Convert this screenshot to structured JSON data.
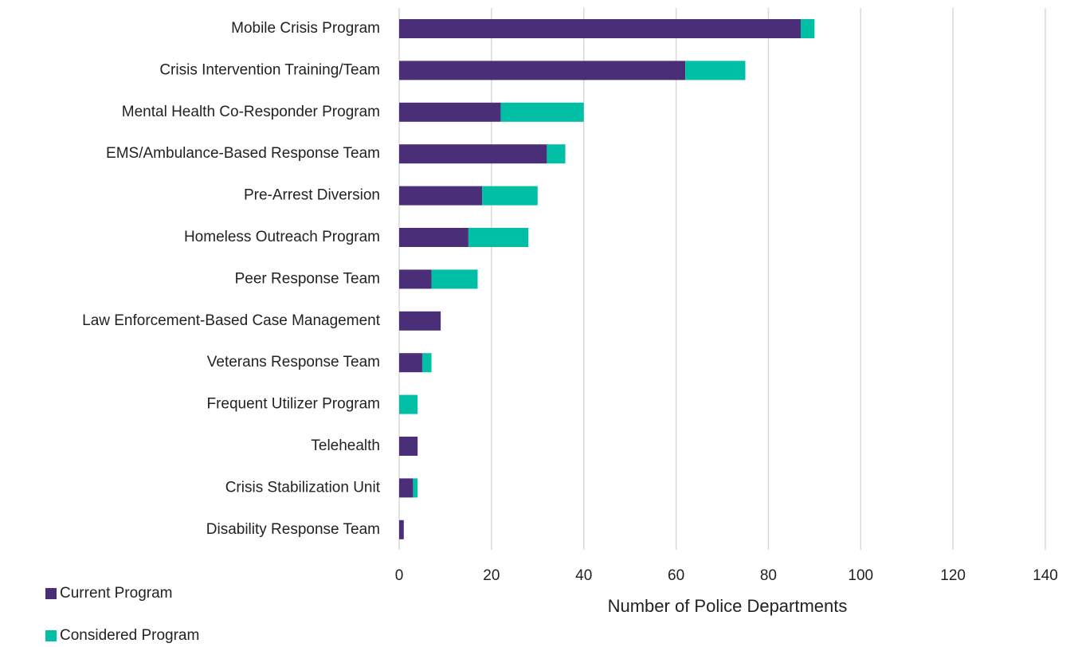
{
  "chart_data": {
    "type": "bar",
    "orientation": "horizontal",
    "stacked": true,
    "x_label": "Number of Police Departments",
    "categories": [
      "Mobile Crisis Program",
      "Crisis Intervention Training/Team",
      "Mental Health Co-Responder Program",
      "EMS/Ambulance-Based Response Team",
      "Pre-Arrest Diversion",
      "Homeless Outreach Program",
      "Peer Response Team",
      "Law Enforcement-Based Case Management",
      "Veterans Response Team",
      "Frequent Utilizer Program",
      "Telehealth",
      "Crisis Stabilization Unit",
      "Disability Response Team"
    ],
    "series": [
      {
        "name": "Current Program",
        "color": "#4b2e78",
        "values": [
          87,
          62,
          22,
          32,
          18,
          15,
          7,
          9,
          5,
          0,
          4,
          3,
          1
        ]
      },
      {
        "name": "Considered Program",
        "color": "#00bfa5",
        "values": [
          3,
          13,
          18,
          4,
          12,
          13,
          10,
          0,
          2,
          4,
          0,
          1,
          0
        ]
      }
    ],
    "xlim": [
      0,
      140
    ],
    "xticks": [
      0,
      20,
      40,
      60,
      80,
      100,
      120,
      140
    ],
    "grid": true,
    "legend": "bottom-left"
  }
}
